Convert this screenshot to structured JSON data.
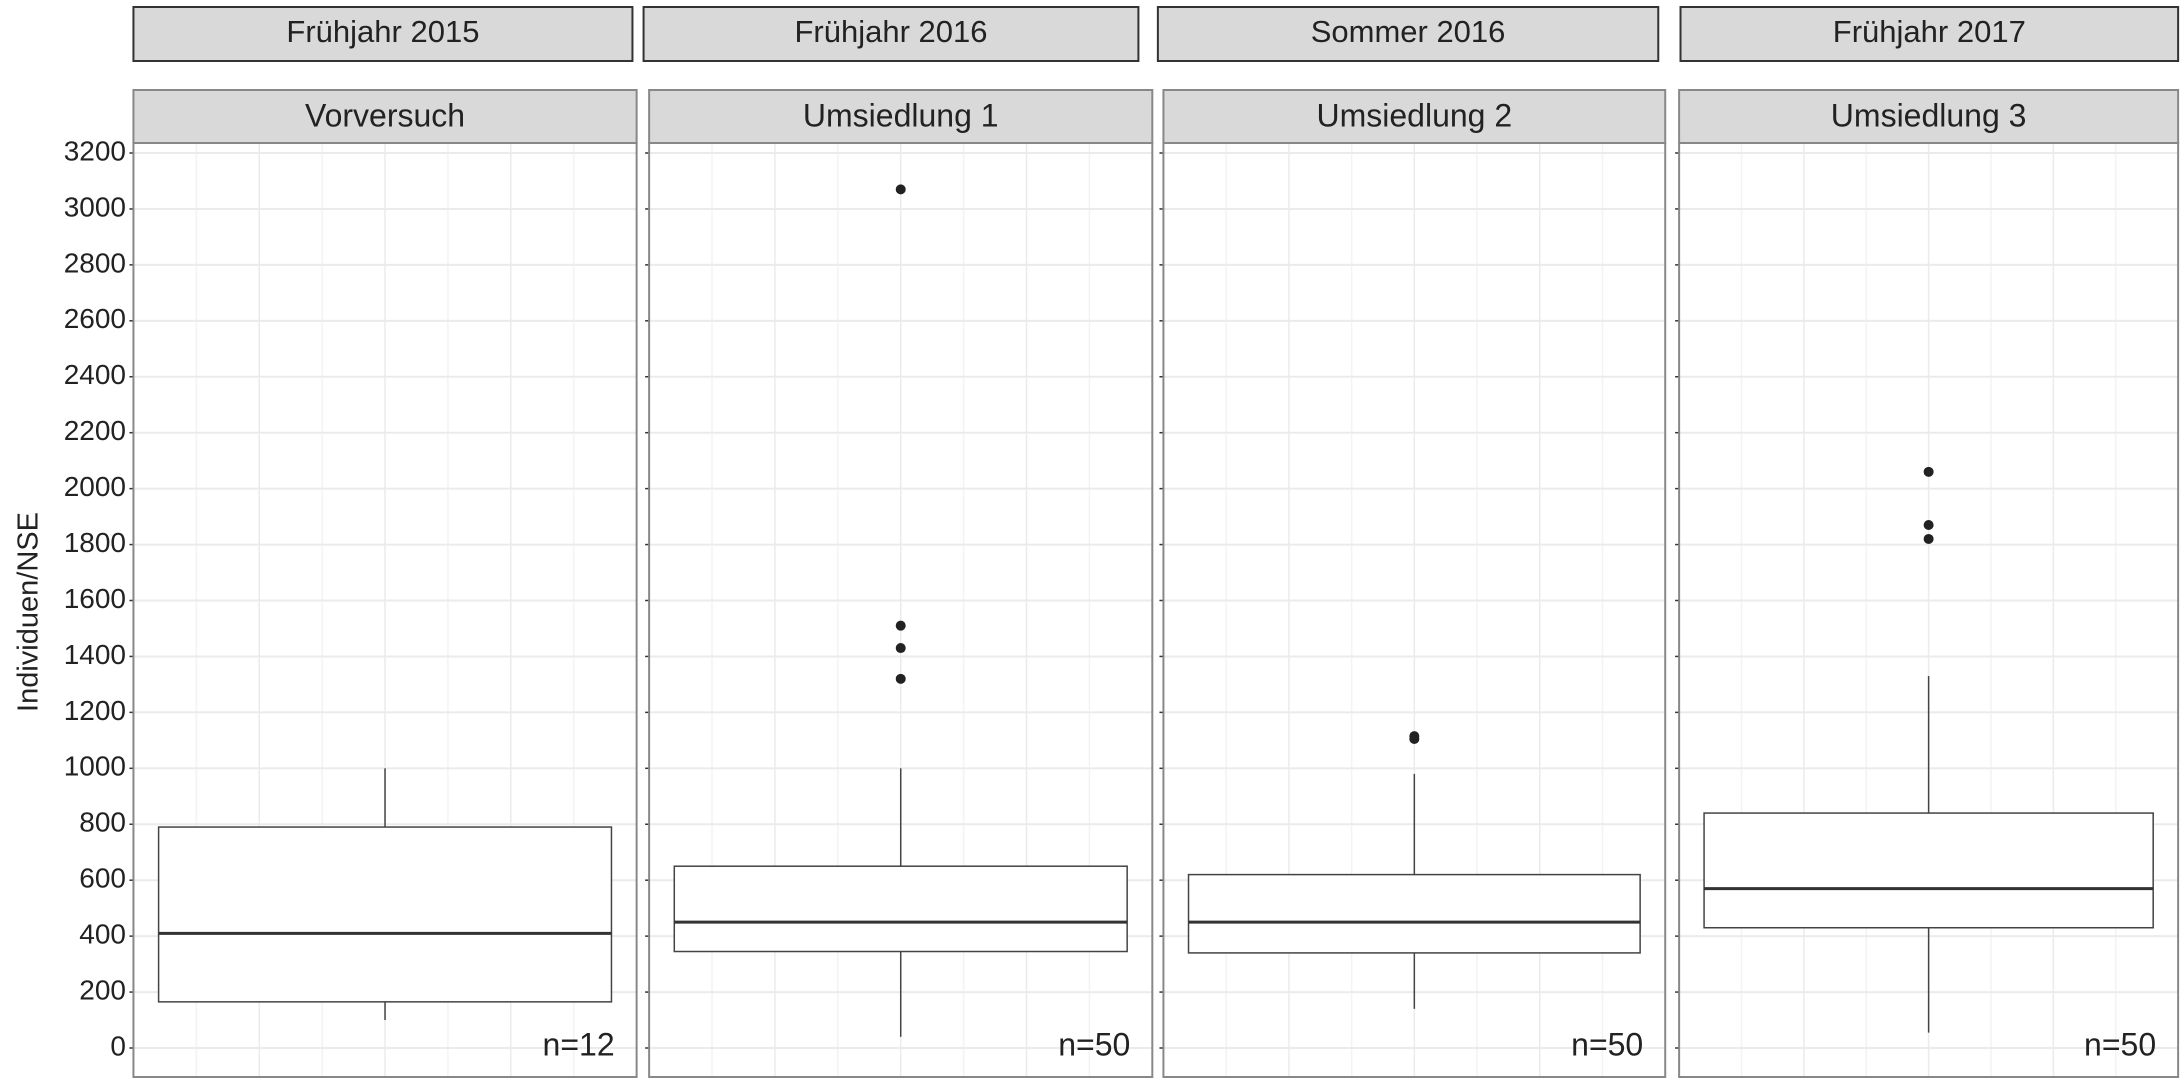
{
  "chart_data": {
    "type": "box",
    "ylabel": "Individuen/NSE",
    "ylim": [
      0,
      3200
    ],
    "yticks": [
      0,
      200,
      400,
      600,
      800,
      1000,
      1200,
      1400,
      1600,
      1800,
      2000,
      2200,
      2400,
      2600,
      2800,
      3000,
      3200
    ],
    "grid": true,
    "panels": [
      {
        "season": "Frühjahr 2015",
        "name": "Vorversuch",
        "n_label": "n=12",
        "whisker_low": 100,
        "q1": 165,
        "median": 410,
        "q3": 790,
        "whisker_high": 1000,
        "outliers": []
      },
      {
        "season": "Frühjahr 2016",
        "name": "Umsiedlung 1",
        "n_label": "n=50",
        "whisker_low": 40,
        "q1": 345,
        "median": 450,
        "q3": 650,
        "whisker_high": 1000,
        "outliers": [
          3070,
          1510,
          1430,
          1320
        ]
      },
      {
        "season": "Sommer 2016",
        "name": "Umsiedlung 2",
        "n_label": "n=50",
        "whisker_low": 140,
        "q1": 340,
        "median": 450,
        "q3": 620,
        "whisker_high": 980,
        "outliers": [
          1115,
          1105
        ]
      },
      {
        "season": "Frühjahr 2017",
        "name": "Umsiedlung 3",
        "n_label": "n=50",
        "whisker_low": 55,
        "q1": 430,
        "median": 570,
        "q3": 840,
        "whisker_high": 1330,
        "outliers": [
          2060,
          1870,
          1820
        ]
      }
    ]
  }
}
